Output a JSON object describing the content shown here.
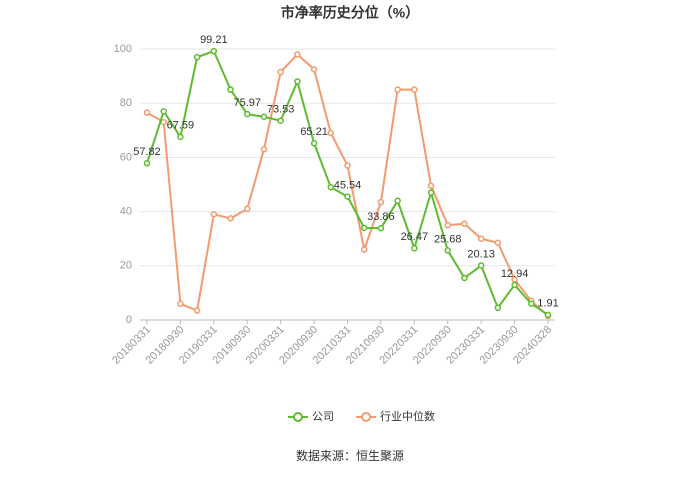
{
  "chart_data": {
    "type": "line",
    "title": "市净率历史分位（%）",
    "source": "数据来源：恒生聚源",
    "categories": [
      "20180331",
      "20180630",
      "20180930",
      "20181231",
      "20190331",
      "20190630",
      "20190930",
      "20191231",
      "20200331",
      "20200630",
      "20200930",
      "20201231",
      "20210331",
      "20210630",
      "20210930",
      "20211231",
      "20220331",
      "20220630",
      "20220930",
      "20221231",
      "20230331",
      "20230630",
      "20230930",
      "20231231",
      "20240328"
    ],
    "category_labels": [
      "20180331",
      null,
      "20180930",
      null,
      "20190331",
      null,
      "20190930",
      null,
      "20200331",
      null,
      "20200930",
      null,
      "20210331",
      null,
      "20210930",
      null,
      "20220331",
      null,
      "20220930",
      null,
      "20230331",
      null,
      "20230930",
      null,
      "20240328"
    ],
    "ylim": [
      0,
      100
    ],
    "yticks": [
      0,
      20,
      40,
      60,
      80,
      100
    ],
    "grid": true,
    "series": [
      {
        "name": "公司",
        "color": "#5dbb2f",
        "values": [
          57.82,
          77,
          67.59,
          97,
          99.21,
          85,
          75.97,
          75,
          73.53,
          88,
          65.21,
          49,
          45.54,
          34,
          33.86,
          44,
          26.47,
          47,
          25.68,
          15.5,
          20.13,
          4.5,
          12.94,
          6,
          1.91
        ],
        "value_labels": [
          "57.82",
          null,
          "67.59",
          null,
          "99.21",
          null,
          "75.97",
          null,
          "73.53",
          null,
          "65.21",
          null,
          "45.54",
          null,
          "33.86",
          null,
          "26.47",
          null,
          "25.68",
          null,
          "20.13",
          null,
          "12.94",
          null,
          "1.91"
        ]
      },
      {
        "name": "行业中位数",
        "color": "#f39a6e",
        "values": [
          76.5,
          73,
          6,
          3.5,
          39,
          37.5,
          41,
          63,
          91.5,
          98,
          92.5,
          69,
          57,
          26,
          43.5,
          85,
          85,
          49.5,
          35,
          35.5,
          30,
          28.5,
          15,
          7,
          1.5
        ]
      }
    ]
  }
}
